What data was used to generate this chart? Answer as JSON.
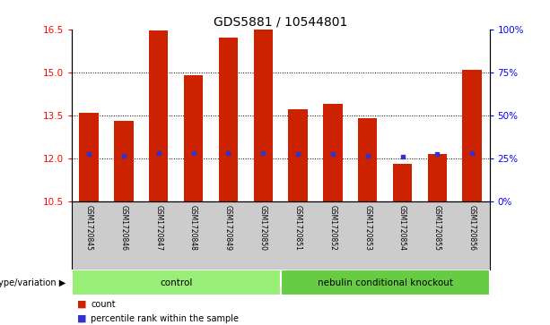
{
  "title": "GDS5881 / 10544801",
  "samples": [
    "GSM1720845",
    "GSM1720846",
    "GSM1720847",
    "GSM1720848",
    "GSM1720849",
    "GSM1720850",
    "GSM1720851",
    "GSM1720852",
    "GSM1720853",
    "GSM1720854",
    "GSM1720855",
    "GSM1720856"
  ],
  "bar_tops": [
    13.6,
    13.3,
    16.45,
    14.9,
    16.2,
    16.5,
    13.7,
    13.9,
    13.4,
    11.8,
    12.15,
    15.1
  ],
  "blue_markers": [
    12.15,
    12.1,
    12.2,
    12.2,
    12.2,
    12.2,
    12.15,
    12.15,
    12.1,
    12.05,
    12.15,
    12.2
  ],
  "y_min": 10.5,
  "y_max": 16.5,
  "bar_color": "#CC2200",
  "blue_color": "#3333CC",
  "bar_width": 0.55,
  "groups": [
    {
      "label": "control",
      "start": 0,
      "end": 6,
      "color": "#99EE77"
    },
    {
      "label": "nebulin conditional knockout",
      "start": 6,
      "end": 12,
      "color": "#66CC44"
    }
  ],
  "group_label": "genotype/variation",
  "legend_count": "count",
  "legend_percentile": "percentile rank within the sample",
  "title_fontsize": 10,
  "tick_fontsize": 7.5
}
